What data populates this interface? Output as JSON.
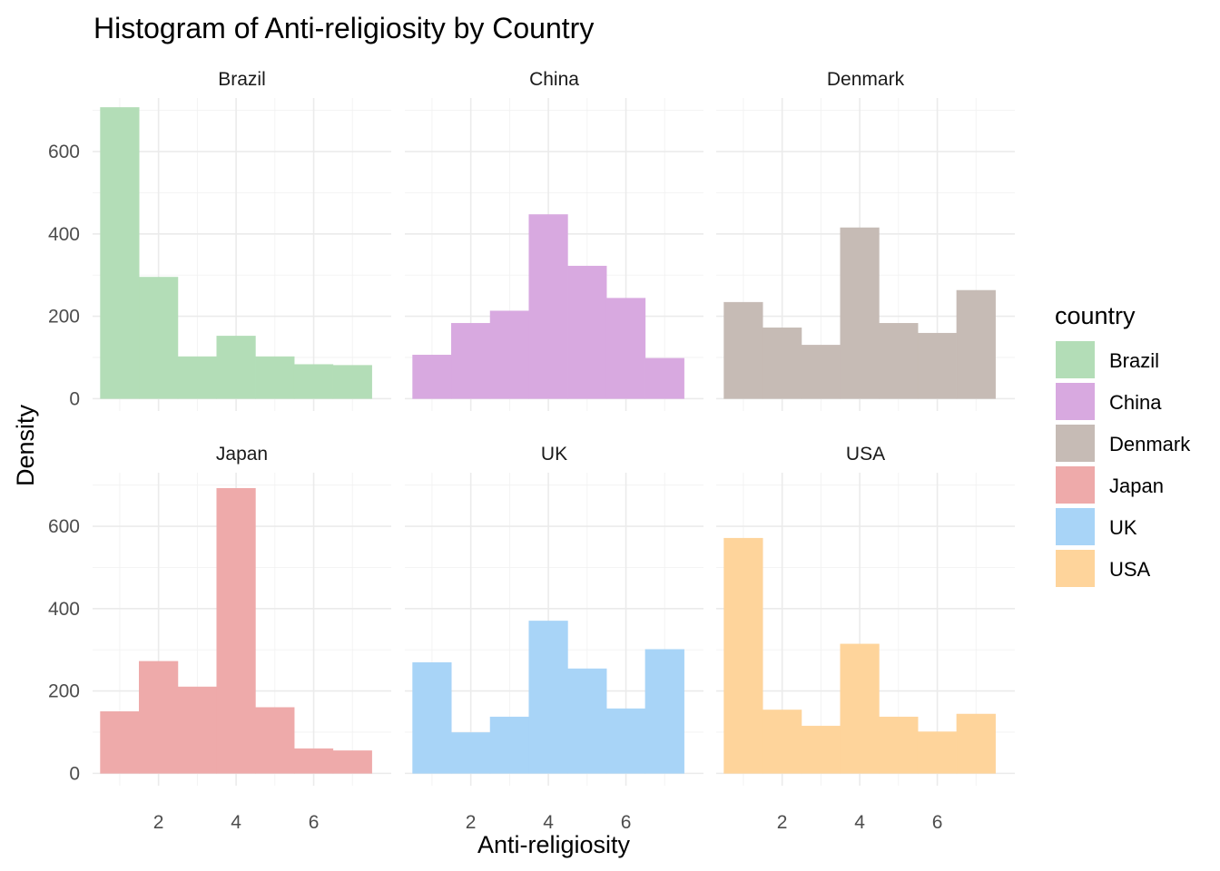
{
  "chart_data": {
    "type": "bar",
    "title": "Histogram of Anti-religiosity by Country",
    "xlabel": "Anti-religiosity",
    "ylabel": "Density",
    "xlim": [
      0.3,
      8.0
    ],
    "ylim": [
      -30,
      730
    ],
    "x_ticks": [
      2,
      4,
      6
    ],
    "y_ticks": [
      0,
      200,
      400,
      600
    ],
    "bin_edges": [
      0.5,
      1.5,
      2.5,
      3.5,
      4.5,
      5.5,
      6.5,
      7.5
    ],
    "grid": true,
    "legend": {
      "title": "country",
      "position": "right",
      "entries": [
        "Brazil",
        "China",
        "Denmark",
        "Japan",
        "UK",
        "USA"
      ]
    },
    "series": [
      {
        "name": "Brazil",
        "color": "#b3ddb7",
        "values": [
          707,
          295,
          102,
          152,
          102,
          83,
          81
        ]
      },
      {
        "name": "China",
        "color": "#d8a9e0",
        "values": [
          106,
          183,
          213,
          447,
          322,
          244,
          98
        ]
      },
      {
        "name": "Denmark",
        "color": "#c6bbb5",
        "values": [
          234,
          172,
          130,
          415,
          183,
          159,
          263
        ]
      },
      {
        "name": "Japan",
        "color": "#eeaaaa",
        "values": [
          150,
          272,
          210,
          692,
          160,
          60,
          55
        ]
      },
      {
        "name": "UK",
        "color": "#a8d4f7",
        "values": [
          269,
          99,
          137,
          370,
          254,
          157,
          301
        ]
      },
      {
        "name": "USA",
        "color": "#fed49b",
        "values": [
          571,
          154,
          115,
          314,
          137,
          101,
          144
        ]
      }
    ]
  }
}
